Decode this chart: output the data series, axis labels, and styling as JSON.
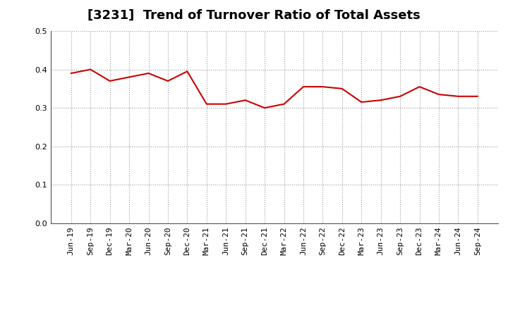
{
  "title": "[3231]  Trend of Turnover Ratio of Total Assets",
  "x_labels": [
    "Jun-19",
    "Sep-19",
    "Dec-19",
    "Mar-20",
    "Jun-20",
    "Sep-20",
    "Dec-20",
    "Mar-21",
    "Jun-21",
    "Sep-21",
    "Dec-21",
    "Mar-22",
    "Jun-22",
    "Sep-22",
    "Dec-22",
    "Mar-23",
    "Jun-23",
    "Sep-23",
    "Dec-23",
    "Mar-24",
    "Jun-24",
    "Sep-24"
  ],
  "values": [
    0.39,
    0.4,
    0.37,
    0.38,
    0.39,
    0.37,
    0.395,
    0.31,
    0.31,
    0.32,
    0.3,
    0.31,
    0.355,
    0.355,
    0.35,
    0.315,
    0.32,
    0.33,
    0.355,
    0.335,
    0.33,
    0.33
  ],
  "line_color": "#cc0000",
  "line_width": 1.5,
  "ylim": [
    0.0,
    0.5
  ],
  "yticks": [
    0.0,
    0.1,
    0.2,
    0.3,
    0.4,
    0.5
  ],
  "grid_color": "#999999",
  "grid_linestyle": ":",
  "grid_linewidth": 0.8,
  "bg_color": "#ffffff",
  "title_fontsize": 13,
  "tick_fontsize": 8,
  "title_color": "#000000",
  "title_fontweight": "bold"
}
